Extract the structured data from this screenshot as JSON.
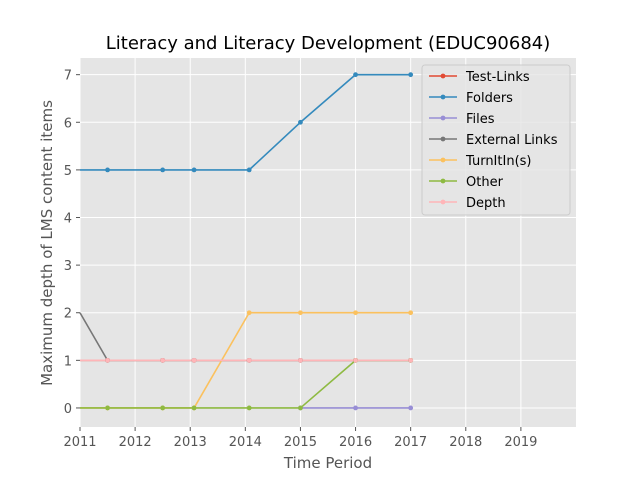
{
  "chart_data": {
    "type": "line",
    "title": "Literacy and Literacy Development (EDUC90684)",
    "xlabel": "Time Period",
    "ylabel": "Maximum depth of LMS content items",
    "xlim": [
      2011,
      2020
    ],
    "ylim": [
      -0.4,
      7.35
    ],
    "x_ticks": [
      2011,
      2012,
      2013,
      2014,
      2015,
      2016,
      2017,
      2018,
      2019
    ],
    "y_ticks": [
      0,
      1,
      2,
      3,
      4,
      5,
      6,
      7
    ],
    "grid": true,
    "legend_position": "top-right",
    "series": [
      {
        "name": "Test-Links",
        "color": "#E24A33",
        "points": [
          [
            2011.0,
            1
          ],
          [
            2011.5,
            1
          ],
          [
            2012.5,
            1
          ],
          [
            2013.07,
            1
          ],
          [
            2014.07,
            1
          ],
          [
            2015.0,
            1
          ],
          [
            2016.0,
            1
          ],
          [
            2017.0,
            1
          ]
        ]
      },
      {
        "name": "Folders",
        "color": "#348ABD",
        "points": [
          [
            2011.0,
            5
          ],
          [
            2011.5,
            5
          ],
          [
            2012.5,
            5
          ],
          [
            2013.07,
            5
          ],
          [
            2014.07,
            5
          ],
          [
            2015.0,
            6
          ],
          [
            2016.0,
            7
          ],
          [
            2017.0,
            7
          ]
        ]
      },
      {
        "name": "Files",
        "color": "#988ED5",
        "points": [
          [
            2015.0,
            0
          ],
          [
            2016.0,
            0
          ],
          [
            2017.0,
            0
          ]
        ]
      },
      {
        "name": "External Links",
        "color": "#777777",
        "points": [
          [
            2011.0,
            2
          ],
          [
            2011.5,
            1
          ],
          [
            2012.5,
            1
          ],
          [
            2013.07,
            1
          ],
          [
            2014.07,
            1
          ],
          [
            2015.0,
            1
          ],
          [
            2016.0,
            1
          ],
          [
            2017.0,
            1
          ]
        ]
      },
      {
        "name": "TurnItIn(s)",
        "color": "#FBC15E",
        "points": [
          [
            2011.0,
            0
          ],
          [
            2011.5,
            0
          ],
          [
            2012.5,
            0
          ],
          [
            2013.07,
            0
          ],
          [
            2014.07,
            2
          ],
          [
            2015.0,
            2
          ],
          [
            2016.0,
            2
          ],
          [
            2017.0,
            2
          ]
        ]
      },
      {
        "name": "Other",
        "color": "#8EBA42",
        "points": [
          [
            2011.0,
            0
          ],
          [
            2011.5,
            0
          ],
          [
            2012.5,
            0
          ],
          [
            2013.07,
            0
          ],
          [
            2014.07,
            0
          ],
          [
            2015.0,
            0
          ],
          [
            2016.0,
            1
          ],
          [
            2017.0,
            1
          ]
        ]
      },
      {
        "name": "Depth",
        "color": "#FFB5B8",
        "points": [
          [
            2011.0,
            1
          ],
          [
            2011.5,
            1
          ],
          [
            2012.5,
            1
          ],
          [
            2013.07,
            1
          ],
          [
            2014.07,
            1
          ],
          [
            2015.0,
            1
          ],
          [
            2016.0,
            1
          ],
          [
            2017.0,
            1
          ]
        ]
      }
    ]
  }
}
